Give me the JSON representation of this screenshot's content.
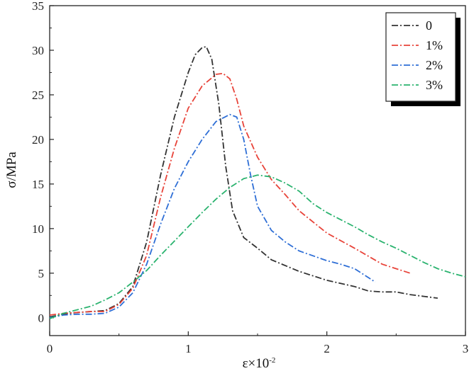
{
  "chart_data": {
    "type": "line",
    "title": "",
    "xlabel": "ε×10",
    "xlabel_exponent": "-2",
    "ylabel": "σ/MPa",
    "xlim": [
      0,
      3
    ],
    "ylim": [
      -2,
      35
    ],
    "xticks": [
      0,
      1,
      2,
      3
    ],
    "yticks": [
      0,
      5,
      10,
      15,
      20,
      25,
      30,
      35
    ],
    "grid": false,
    "legend_position": "top-right",
    "series": [
      {
        "name": "0",
        "color": "#333333",
        "points": [
          [
            0,
            0.1
          ],
          [
            0.1,
            0.4
          ],
          [
            0.2,
            0.6
          ],
          [
            0.3,
            0.7
          ],
          [
            0.4,
            0.8
          ],
          [
            0.5,
            1.6
          ],
          [
            0.6,
            3.5
          ],
          [
            0.7,
            8.5
          ],
          [
            0.8,
            16
          ],
          [
            0.9,
            22.5
          ],
          [
            1.0,
            27.5
          ],
          [
            1.05,
            29.5
          ],
          [
            1.1,
            30.3
          ],
          [
            1.13,
            30.4
          ],
          [
            1.17,
            29
          ],
          [
            1.22,
            24
          ],
          [
            1.27,
            17
          ],
          [
            1.32,
            12
          ],
          [
            1.4,
            9
          ],
          [
            1.5,
            7.8
          ],
          [
            1.6,
            6.5
          ],
          [
            1.8,
            5.2
          ],
          [
            2.0,
            4.2
          ],
          [
            2.2,
            3.5
          ],
          [
            2.3,
            3.0
          ],
          [
            2.4,
            2.9
          ],
          [
            2.5,
            2.9
          ],
          [
            2.6,
            2.6
          ],
          [
            2.7,
            2.4
          ],
          [
            2.8,
            2.2
          ]
        ]
      },
      {
        "name": "1%",
        "color": "#e8443a",
        "points": [
          [
            0,
            0.3
          ],
          [
            0.1,
            0.5
          ],
          [
            0.2,
            0.6
          ],
          [
            0.3,
            0.7
          ],
          [
            0.4,
            0.7
          ],
          [
            0.5,
            1.5
          ],
          [
            0.6,
            3.3
          ],
          [
            0.7,
            7
          ],
          [
            0.8,
            13.5
          ],
          [
            0.9,
            19
          ],
          [
            1.0,
            23.5
          ],
          [
            1.1,
            26
          ],
          [
            1.2,
            27.3
          ],
          [
            1.25,
            27.4
          ],
          [
            1.3,
            26.8
          ],
          [
            1.35,
            24.5
          ],
          [
            1.4,
            21.5
          ],
          [
            1.5,
            18
          ],
          [
            1.6,
            15.5
          ],
          [
            1.7,
            13.8
          ],
          [
            1.8,
            12
          ],
          [
            2.0,
            9.5
          ],
          [
            2.2,
            7.8
          ],
          [
            2.4,
            6
          ],
          [
            2.5,
            5.5
          ],
          [
            2.6,
            5.0
          ]
        ]
      },
      {
        "name": "2%",
        "color": "#2f6fd6",
        "points": [
          [
            0,
            0
          ],
          [
            0.1,
            0.3
          ],
          [
            0.2,
            0.4
          ],
          [
            0.3,
            0.4
          ],
          [
            0.4,
            0.5
          ],
          [
            0.5,
            1.2
          ],
          [
            0.6,
            2.8
          ],
          [
            0.7,
            6
          ],
          [
            0.8,
            10.5
          ],
          [
            0.9,
            14.5
          ],
          [
            1.0,
            17.5
          ],
          [
            1.1,
            20
          ],
          [
            1.2,
            22
          ],
          [
            1.3,
            22.8
          ],
          [
            1.35,
            22.5
          ],
          [
            1.4,
            20
          ],
          [
            1.45,
            16
          ],
          [
            1.5,
            12.5
          ],
          [
            1.6,
            9.8
          ],
          [
            1.7,
            8.5
          ],
          [
            1.8,
            7.5
          ],
          [
            2.0,
            6.4
          ],
          [
            2.1,
            6
          ],
          [
            2.2,
            5.5
          ],
          [
            2.3,
            4.5
          ],
          [
            2.35,
            4.0
          ]
        ]
      },
      {
        "name": "3%",
        "color": "#2bb36f",
        "points": [
          [
            0,
            -0.1
          ],
          [
            0.1,
            0.5
          ],
          [
            0.2,
            0.9
          ],
          [
            0.3,
            1.3
          ],
          [
            0.4,
            2
          ],
          [
            0.5,
            2.8
          ],
          [
            0.6,
            4
          ],
          [
            0.7,
            5.3
          ],
          [
            0.8,
            7
          ],
          [
            0.9,
            8.6
          ],
          [
            1.0,
            10.2
          ],
          [
            1.1,
            11.8
          ],
          [
            1.2,
            13.3
          ],
          [
            1.3,
            14.6
          ],
          [
            1.4,
            15.6
          ],
          [
            1.5,
            16
          ],
          [
            1.6,
            15.8
          ],
          [
            1.7,
            15.1
          ],
          [
            1.8,
            14.2
          ],
          [
            1.9,
            12.8
          ],
          [
            2.0,
            11.8
          ],
          [
            2.1,
            11.0
          ],
          [
            2.2,
            10.2
          ],
          [
            2.3,
            9.3
          ],
          [
            2.4,
            8.5
          ],
          [
            2.5,
            7.8
          ],
          [
            2.6,
            7.0
          ],
          [
            2.7,
            6.2
          ],
          [
            2.8,
            5.5
          ],
          [
            2.9,
            5.0
          ],
          [
            3.0,
            4.6
          ]
        ]
      }
    ]
  }
}
